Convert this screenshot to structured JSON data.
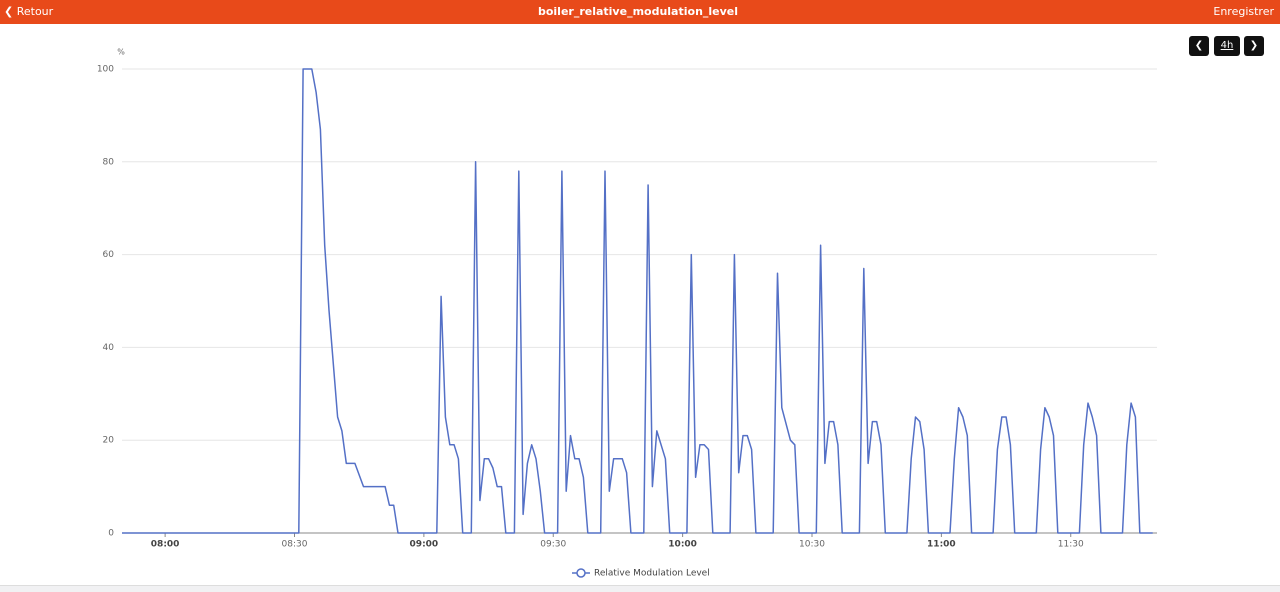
{
  "header": {
    "back": "Retour",
    "title": "boiler_relative_modulation_level",
    "save": "Enregistrer"
  },
  "controls": {
    "range": "4h"
  },
  "chart_data": {
    "type": "line",
    "y_label": "%",
    "x": [
      "07:50",
      "08:31",
      "08:32",
      "08:34",
      "08:35",
      "08:36",
      "08:37",
      "08:38",
      "08:40",
      "08:41",
      "08:42",
      "08:44",
      "08:46",
      "08:51",
      "08:52",
      "08:53",
      "08:54",
      "09:03",
      "09:04",
      "09:05",
      "09:06",
      "09:07",
      "09:08",
      "09:09",
      "09:11",
      "09:12",
      "09:13",
      "09:14",
      "09:15",
      "09:16",
      "09:17",
      "09:18",
      "09:19",
      "09:21",
      "09:22",
      "09:23",
      "09:24",
      "09:25",
      "09:26",
      "09:27",
      "09:28",
      "09:31",
      "09:32",
      "09:33",
      "09:34",
      "09:35",
      "09:36",
      "09:37",
      "09:38",
      "09:41",
      "09:42",
      "09:43",
      "09:44",
      "09:46",
      "09:47",
      "09:48",
      "09:51",
      "09:52",
      "09:53",
      "09:54",
      "09:56",
      "09:57",
      "10:01",
      "10:02",
      "10:03",
      "10:04",
      "10:05",
      "10:06",
      "10:07",
      "10:11",
      "10:12",
      "10:13",
      "10:14",
      "10:15",
      "10:16",
      "10:17",
      "10:21",
      "10:22",
      "10:23",
      "10:25",
      "10:26",
      "10:27",
      "10:31",
      "10:32",
      "10:33",
      "10:34",
      "10:35",
      "10:36",
      "10:37",
      "10:41",
      "10:42",
      "10:43",
      "10:44",
      "10:45",
      "10:46",
      "10:47",
      "10:52",
      "10:53",
      "10:54",
      "10:55",
      "10:56",
      "10:57",
      "11:02",
      "11:03",
      "11:04",
      "11:05",
      "11:06",
      "11:07",
      "11:12",
      "11:13",
      "11:14",
      "11:15",
      "11:16",
      "11:17",
      "11:22",
      "11:23",
      "11:24",
      "11:25",
      "11:26",
      "11:27",
      "11:32",
      "11:33",
      "11:34",
      "11:35",
      "11:36",
      "11:37",
      "11:42",
      "11:43",
      "11:44",
      "11:45",
      "11:46",
      "11:49"
    ],
    "series": [
      {
        "name": "Relative Modulation Level",
        "color": "#5470c6",
        "values": [
          0,
          0,
          100,
          100,
          95,
          87,
          62,
          48,
          25,
          22,
          15,
          15,
          10,
          10,
          6,
          6,
          0,
          0,
          51,
          25,
          19,
          19,
          16,
          0,
          0,
          80,
          7,
          16,
          16,
          14,
          10,
          10,
          0,
          0,
          78,
          4,
          15,
          19,
          16,
          9,
          0,
          0,
          78,
          9,
          21,
          16,
          16,
          12,
          0,
          0,
          78,
          9,
          16,
          16,
          13,
          0,
          0,
          75,
          10,
          22,
          16,
          0,
          0,
          60,
          12,
          19,
          19,
          18,
          0,
          0,
          60,
          13,
          21,
          21,
          18,
          0,
          0,
          56,
          27,
          20,
          19,
          0,
          0,
          62,
          15,
          24,
          24,
          19,
          0,
          0,
          57,
          15,
          24,
          24,
          19,
          0,
          0,
          16,
          25,
          24,
          18,
          0,
          0,
          16,
          27,
          25,
          21,
          0,
          0,
          18,
          25,
          25,
          19,
          0,
          0,
          18,
          27,
          25,
          21,
          0,
          0,
          19,
          28,
          25,
          21,
          0,
          0,
          19,
          28,
          25,
          0,
          0
        ]
      }
    ],
    "xlim": [
      "07:50",
      "11:50"
    ],
    "xticks": [
      "08:00",
      "08:30",
      "09:00",
      "09:30",
      "10:00",
      "10:30",
      "11:00",
      "11:30"
    ],
    "ylim": [
      0,
      100
    ],
    "yticks": [
      0,
      20,
      40,
      60,
      80,
      100
    ],
    "grid": true
  }
}
